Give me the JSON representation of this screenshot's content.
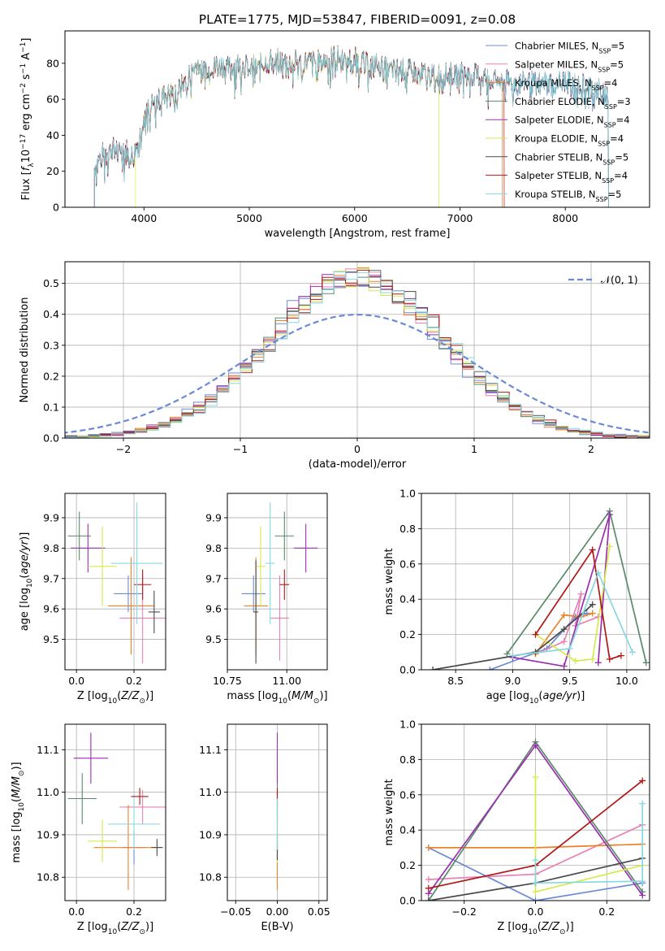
{
  "figure": {
    "title": "PLATE=1775, MJD=53847, FIBERID=0091, z=0.08"
  },
  "series_colors": [
    {
      "name": "Chabrier MILES",
      "color": "#6b8ad6"
    },
    {
      "name": "Salpeter MILES",
      "color": "#e882b4"
    },
    {
      "name": "Kroupa MILES",
      "color": "#e8832a"
    },
    {
      "name": "Chabrier ELODIE",
      "color": "#5a8a6a"
    },
    {
      "name": "Salpeter ELODIE",
      "color": "#9a2fb0"
    },
    {
      "name": "Kroupa ELODIE",
      "color": "#d6ea4a"
    },
    {
      "name": "Chabrier STELIB",
      "color": "#4a4a4a"
    },
    {
      "name": "Salpeter STELIB",
      "color": "#b01818"
    },
    {
      "name": "Kroupa STELIB",
      "color": "#86d8e0"
    }
  ],
  "chart_data": [
    {
      "id": "spectrum",
      "type": "line",
      "xlabel": "wavelength [Angstrom, rest frame]",
      "ylabel": "Flux [f_λ10^-17 erg cm^-2 s^-1 A^-1]",
      "xlim": [
        3250,
        8800
      ],
      "ylim": [
        0,
        98
      ],
      "xticks": [
        4000,
        5000,
        6000,
        7000,
        8000
      ],
      "yticks": [
        0,
        20,
        40,
        60,
        80
      ],
      "legend_position": "upper right",
      "legend": [
        {
          "label": "Chabrier MILES, N",
          "sub": "SSP",
          "suffix": "=5"
        },
        {
          "label": "Salpeter MILES, N",
          "sub": "SSP",
          "suffix": "=5"
        },
        {
          "label": "Kroupa MILES, N",
          "sub": "SSP",
          "suffix": "=4"
        },
        {
          "label": "Chabrier ELODIE, N",
          "sub": "SSP",
          "suffix": "=3"
        },
        {
          "label": "Salpeter ELODIE, N",
          "sub": "SSP",
          "suffix": "=4"
        },
        {
          "label": "Kroupa ELODIE, N",
          "sub": "SSP",
          "suffix": "=4"
        },
        {
          "label": "Chabrier STELIB, N",
          "sub": "SSP",
          "suffix": "=5"
        },
        {
          "label": "Salpeter STELIB, N",
          "sub": "SSP",
          "suffix": "=4"
        },
        {
          "label": "Kroupa STELIB, N",
          "sub": "SSP",
          "suffix": "=5"
        }
      ],
      "envelope": [
        [
          3530,
          22
        ],
        [
          3600,
          30
        ],
        [
          3700,
          33
        ],
        [
          3800,
          34
        ],
        [
          3900,
          28
        ],
        [
          3950,
          38
        ],
        [
          4000,
          52
        ],
        [
          4100,
          58
        ],
        [
          4200,
          63
        ],
        [
          4300,
          64
        ],
        [
          4400,
          71
        ],
        [
          4500,
          80
        ],
        [
          4600,
          78
        ],
        [
          4700,
          80
        ],
        [
          4800,
          78
        ],
        [
          4900,
          80
        ],
        [
          5000,
          78
        ],
        [
          5100,
          79
        ],
        [
          5200,
          82
        ],
        [
          5300,
          82
        ],
        [
          5400,
          80
        ],
        [
          5500,
          82
        ],
        [
          5600,
          81
        ],
        [
          5700,
          81
        ],
        [
          5800,
          84
        ],
        [
          5900,
          83
        ],
        [
          6000,
          83
        ],
        [
          6100,
          80
        ],
        [
          6200,
          80
        ],
        [
          6300,
          77
        ],
        [
          6400,
          77
        ],
        [
          6500,
          76
        ],
        [
          6600,
          75
        ],
        [
          6700,
          74
        ],
        [
          6800,
          74
        ],
        [
          6900,
          74
        ],
        [
          7000,
          75
        ],
        [
          7100,
          74
        ],
        [
          7200,
          73
        ],
        [
          7300,
          72
        ],
        [
          7400,
          70
        ],
        [
          7500,
          70
        ],
        [
          7600,
          70
        ],
        [
          7700,
          69
        ],
        [
          7800,
          70
        ],
        [
          7900,
          70
        ],
        [
          8000,
          70
        ],
        [
          8100,
          69
        ],
        [
          8200,
          68
        ],
        [
          8300,
          66
        ],
        [
          8410,
          62
        ]
      ],
      "model_ranges": [
        [
          3530,
          8410
        ],
        [
          3530,
          8410
        ],
        [
          3530,
          7400
        ],
        [
          3530,
          8410
        ],
        [
          3530,
          8410
        ],
        [
          3920,
          6800
        ],
        [
          3530,
          8410
        ],
        [
          3530,
          7420
        ],
        [
          3530,
          8410
        ]
      ]
    },
    {
      "id": "residuals",
      "type": "histogram",
      "xlabel": "(data-model)/error",
      "ylabel": "Normed distribution",
      "xlim": [
        -2.5,
        2.5
      ],
      "ylim": [
        0,
        0.57
      ],
      "xticks": [
        -2,
        -1,
        0,
        1,
        2
      ],
      "yticks": [
        0.0,
        0.1,
        0.2,
        0.3,
        0.4,
        0.5
      ],
      "bin_width": 0.1,
      "grid": true,
      "legend": [
        {
          "label": "𝒩(0, 1)"
        }
      ],
      "legend_position": "upper right",
      "reference_curve": "standard normal, mean 0, sigma 1"
    },
    {
      "id": "age_vs_Z",
      "type": "errorbar",
      "xlabel": "Z [log10(Z/Z⊙)]",
      "ylabel": "age  [log10(age/yr)]",
      "xlim": [
        -0.04,
        0.31
      ],
      "ylim": [
        9.4,
        9.98
      ],
      "xticks": [
        0.0,
        0.2
      ],
      "yticks": [
        9.5,
        9.6,
        9.7,
        9.8,
        9.9
      ],
      "grid": true,
      "points": [
        {
          "series": "Chabrier MILES",
          "x": 0.18,
          "y": 9.65,
          "xerr": 0.05,
          "yerr": 0.06
        },
        {
          "series": "Salpeter MILES",
          "x": 0.23,
          "y": 9.57,
          "xerr": 0.08,
          "yerr": 0.15
        },
        {
          "series": "Kroupa MILES",
          "x": 0.19,
          "y": 9.61,
          "xerr": 0.08,
          "yerr": 0.16
        },
        {
          "series": "Chabrier ELODIE",
          "x": 0.01,
          "y": 9.84,
          "xerr": 0.04,
          "yerr": 0.08
        },
        {
          "series": "Salpeter ELODIE",
          "x": 0.04,
          "y": 9.8,
          "xerr": 0.06,
          "yerr": 0.08
        },
        {
          "series": "Kroupa ELODIE",
          "x": 0.09,
          "y": 9.74,
          "xerr": 0.05,
          "yerr": 0.13
        },
        {
          "series": "Chabrier STELIB",
          "x": 0.27,
          "y": 9.59,
          "xerr": 0.02,
          "yerr": 0.07
        },
        {
          "series": "Salpeter STELIB",
          "x": 0.23,
          "y": 9.68,
          "xerr": 0.03,
          "yerr": 0.05
        },
        {
          "series": "Kroupa STELIB",
          "x": 0.21,
          "y": 9.75,
          "xerr": 0.09,
          "yerr": 0.2
        }
      ]
    },
    {
      "id": "age_vs_mass",
      "type": "errorbar",
      "xlabel": "mass [log10(M/M⊙)]",
      "ylabel": "",
      "xlim": [
        10.75,
        11.17
      ],
      "ylim": [
        9.4,
        9.98
      ],
      "xticks": [
        10.75,
        11.0
      ],
      "yticks": [
        9.5,
        9.6,
        9.7,
        9.8,
        9.9
      ],
      "grid": true,
      "points": [
        {
          "series": "Chabrier MILES",
          "x": 10.86,
          "y": 9.65,
          "xerr": 0.05,
          "yerr": 0.06
        },
        {
          "series": "Salpeter MILES",
          "x": 10.97,
          "y": 9.57,
          "xerr": 0.04,
          "yerr": 0.14
        },
        {
          "series": "Kroupa MILES",
          "x": 10.87,
          "y": 9.61,
          "xerr": 0.05,
          "yerr": 0.16
        },
        {
          "series": "Chabrier ELODIE",
          "x": 10.99,
          "y": 9.84,
          "xerr": 0.04,
          "yerr": 0.08
        },
        {
          "series": "Salpeter ELODIE",
          "x": 11.08,
          "y": 9.8,
          "xerr": 0.05,
          "yerr": 0.08
        },
        {
          "series": "Kroupa ELODIE",
          "x": 10.89,
          "y": 9.74,
          "xerr": 0.02,
          "yerr": 0.13
        },
        {
          "series": "Chabrier STELIB",
          "x": 10.87,
          "y": 9.59,
          "xerr": 0.01,
          "yerr": 0.17
        },
        {
          "series": "Salpeter STELIB",
          "x": 10.99,
          "y": 9.68,
          "xerr": 0.02,
          "yerr": 0.05
        },
        {
          "series": "Kroupa STELIB",
          "x": 10.93,
          "y": 9.75,
          "xerr": 0.02,
          "yerr": 0.2
        }
      ]
    },
    {
      "id": "weight_vs_age",
      "type": "line",
      "xlabel": "age  [log10(age/yr)]",
      "ylabel": "mass weight",
      "xlim": [
        8.2,
        10.2
      ],
      "ylim": [
        0,
        1.0
      ],
      "xticks": [
        8.5,
        9.0,
        9.5,
        10.0
      ],
      "yticks": [
        0.0,
        0.2,
        0.4,
        0.6,
        0.8,
        1.0
      ],
      "grid": true,
      "series": [
        {
          "name": "Chabrier MILES",
          "points": [
            [
              8.8,
              0.0
            ],
            [
              9.3,
              0.12
            ],
            [
              9.55,
              0.3
            ],
            [
              9.65,
              0.32
            ]
          ]
        },
        {
          "name": "Salpeter MILES",
          "points": [
            [
              9.2,
              0.09
            ],
            [
              9.45,
              0.16
            ],
            [
              9.6,
              0.43
            ],
            [
              9.55,
              0.25
            ],
            [
              9.75,
              0.3
            ]
          ]
        },
        {
          "name": "Kroupa MILES",
          "points": [
            [
              9.2,
              0.09
            ],
            [
              9.45,
              0.31
            ],
            [
              9.6,
              0.3
            ],
            [
              9.7,
              0.32
            ]
          ]
        },
        {
          "name": "Chabrier ELODIE",
          "points": [
            [
              8.95,
              0.09
            ],
            [
              9.85,
              0.9
            ],
            [
              10.17,
              0.04
            ]
          ]
        },
        {
          "name": "Salpeter ELODIE",
          "points": [
            [
              9.0,
              0.07
            ],
            [
              9.45,
              0.02
            ],
            [
              9.85,
              0.88
            ],
            [
              9.75,
              0.04
            ]
          ]
        },
        {
          "name": "Kroupa ELODIE",
          "points": [
            [
              9.2,
              0.2
            ],
            [
              9.55,
              0.05
            ],
            [
              9.7,
              0.06
            ],
            [
              9.85,
              0.7
            ]
          ]
        },
        {
          "name": "Chabrier STELIB",
          "points": [
            [
              8.3,
              0.0
            ],
            [
              9.2,
              0.1
            ],
            [
              9.45,
              0.23
            ],
            [
              9.7,
              0.37
            ]
          ]
        },
        {
          "name": "Salpeter STELIB",
          "points": [
            [
              9.2,
              0.2
            ],
            [
              9.7,
              0.68
            ],
            [
              9.85,
              0.06
            ],
            [
              9.95,
              0.08
            ]
          ]
        },
        {
          "name": "Kroupa STELIB",
          "points": [
            [
              9.0,
              0.08
            ],
            [
              9.5,
              0.12
            ],
            [
              9.75,
              0.55
            ],
            [
              10.05,
              0.1
            ]
          ]
        }
      ]
    },
    {
      "id": "mass_vs_Z",
      "type": "errorbar",
      "xlabel": "Z [log10(Z/Z⊙)]",
      "ylabel": "mass [log10(M/M⊙)]",
      "xlim": [
        -0.04,
        0.31
      ],
      "ylim": [
        10.745,
        11.16
      ],
      "xticks": [
        0.0,
        0.2
      ],
      "yticks": [
        10.8,
        10.9,
        11.0,
        11.1
      ],
      "grid": true,
      "points": [
        {
          "series": "Chabrier MILES",
          "x": 0.2,
          "y": 10.87,
          "xerr": 0.04,
          "yerr": 0.04
        },
        {
          "series": "Salpeter MILES",
          "x": 0.23,
          "y": 10.965,
          "xerr": 0.08,
          "yerr": 0.04
        },
        {
          "series": "Kroupa MILES",
          "x": 0.18,
          "y": 10.87,
          "xerr": 0.12,
          "yerr": 0.1
        },
        {
          "series": "Chabrier ELODIE",
          "x": 0.02,
          "y": 10.985,
          "xerr": 0.05,
          "yerr": 0.06
        },
        {
          "series": "Salpeter ELODIE",
          "x": 0.05,
          "y": 11.08,
          "xerr": 0.06,
          "yerr": 0.06
        },
        {
          "series": "Kroupa ELODIE",
          "x": 0.09,
          "y": 10.885,
          "xerr": 0.05,
          "yerr": 0.05
        },
        {
          "series": "Chabrier STELIB",
          "x": 0.28,
          "y": 10.87,
          "xerr": 0.02,
          "yerr": 0.02
        },
        {
          "series": "Salpeter STELIB",
          "x": 0.22,
          "y": 10.99,
          "xerr": 0.03,
          "yerr": 0.02
        },
        {
          "series": "Kroupa STELIB",
          "x": 0.2,
          "y": 10.925,
          "xerr": 0.09,
          "yerr": 0.06
        }
      ]
    },
    {
      "id": "mass_vs_ebv",
      "type": "errorbar",
      "xlabel": "E(B-V)",
      "ylabel": "",
      "xlim": [
        -0.06,
        0.06
      ],
      "ylim": [
        10.745,
        11.16
      ],
      "xticks": [
        -0.05,
        0.0,
        0.05
      ],
      "yticks": [
        10.8,
        10.9,
        11.0,
        11.1
      ],
      "grid": true,
      "points": [
        {
          "series": "Chabrier MILES",
          "x": 0.0,
          "y": 10.87,
          "xerr": 0.0,
          "yerr": 0.04
        },
        {
          "series": "Salpeter MILES",
          "x": 0.0,
          "y": 10.965,
          "xerr": 0.0,
          "yerr": 0.04
        },
        {
          "series": "Kroupa MILES",
          "x": 0.0,
          "y": 10.87,
          "xerr": 0.0,
          "yerr": 0.1
        },
        {
          "series": "Chabrier ELODIE",
          "x": 0.0,
          "y": 10.985,
          "xerr": 0.0,
          "yerr": 0.06
        },
        {
          "series": "Salpeter ELODIE",
          "x": 0.0,
          "y": 11.08,
          "xerr": 0.0,
          "yerr": 0.06
        },
        {
          "series": "Kroupa ELODIE",
          "x": 0.0,
          "y": 10.885,
          "xerr": 0.0,
          "yerr": 0.05
        },
        {
          "series": "Chabrier STELIB",
          "x": 0.0,
          "y": 10.87,
          "xerr": 0.0,
          "yerr": 0.03
        },
        {
          "series": "Salpeter STELIB",
          "x": 0.0,
          "y": 10.99,
          "xerr": 0.0,
          "yerr": 0.02
        },
        {
          "series": "Kroupa STELIB",
          "x": 0.0,
          "y": 10.925,
          "xerr": 0.0,
          "yerr": 0.06
        }
      ]
    },
    {
      "id": "weight_vs_Z",
      "type": "line",
      "xlabel": "Z [log10(Z/Z⊙)]",
      "ylabel": "mass weight",
      "xlim": [
        -0.32,
        0.32
      ],
      "ylim": [
        0,
        1.0
      ],
      "xticks": [
        -0.2,
        0.0,
        0.2
      ],
      "yticks": [
        0.0,
        0.2,
        0.4,
        0.6,
        0.8,
        1.0
      ],
      "grid": true,
      "series": [
        {
          "name": "Chabrier MILES",
          "points": [
            [
              -0.3,
              0.3
            ],
            [
              0.0,
              0.0
            ],
            [
              0.3,
              0.1
            ]
          ]
        },
        {
          "name": "Salpeter MILES",
          "points": [
            [
              -0.3,
              0.12
            ],
            [
              0.0,
              0.15
            ],
            [
              0.3,
              0.43
            ]
          ]
        },
        {
          "name": "Kroupa MILES",
          "points": [
            [
              -0.3,
              0.3
            ],
            [
              0.0,
              0.3
            ],
            [
              0.3,
              0.32
            ]
          ]
        },
        {
          "name": "Chabrier ELODIE",
          "points": [
            [
              -0.3,
              0.0
            ],
            [
              0.0,
              0.9
            ],
            [
              0.3,
              0.05
            ]
          ]
        },
        {
          "name": "Salpeter ELODIE",
          "points": [
            [
              -0.3,
              0.04
            ],
            [
              0.0,
              0.88
            ],
            [
              0.3,
              0.03
            ]
          ]
        },
        {
          "name": "Kroupa ELODIE",
          "points": [
            [
              0.0,
              0.7
            ],
            [
              0.0,
              0.05
            ],
            [
              0.3,
              0.2
            ]
          ]
        },
        {
          "name": "Chabrier STELIB",
          "points": [
            [
              -0.3,
              0.0
            ],
            [
              0.0,
              0.1
            ],
            [
              0.3,
              0.24
            ]
          ]
        },
        {
          "name": "Salpeter STELIB",
          "points": [
            [
              -0.3,
              0.07
            ],
            [
              0.0,
              0.2
            ],
            [
              0.3,
              0.68
            ]
          ]
        },
        {
          "name": "Kroupa STELIB",
          "points": [
            [
              0.0,
              0.23
            ],
            [
              0.0,
              0.1
            ],
            [
              0.3,
              0.11
            ],
            [
              0.3,
              0.55
            ]
          ]
        }
      ]
    }
  ]
}
